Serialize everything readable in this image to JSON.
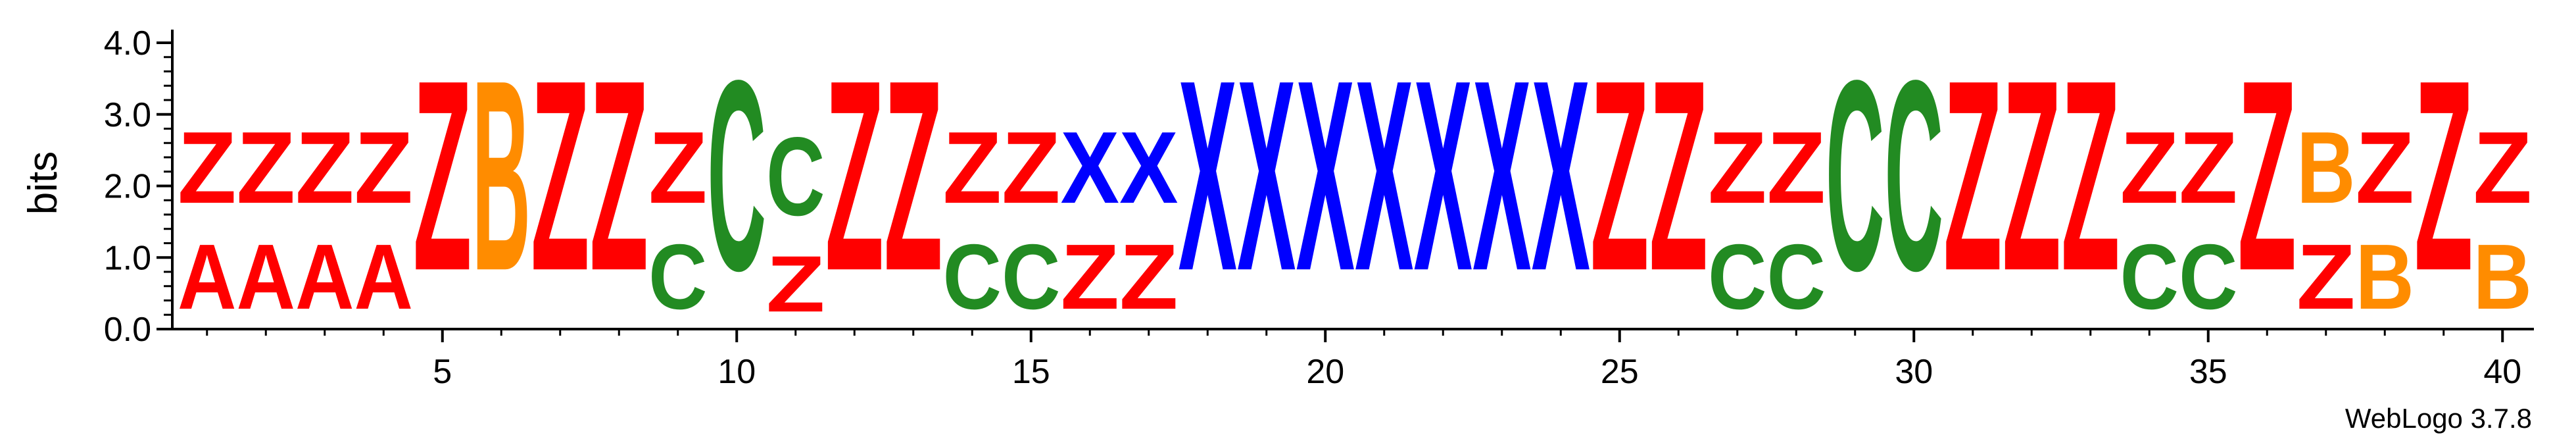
{
  "chart_data": {
    "type": "sequence-logo",
    "ylabel": "bits",
    "ylim": [
      0,
      4.0
    ],
    "y_ticks": [
      "0.0",
      "1.0",
      "2.0",
      "3.0",
      "4.0"
    ],
    "x_ticks": [
      "5",
      "10",
      "15",
      "20",
      "25",
      "30",
      "35",
      "40"
    ],
    "x_tick_positions": [
      5,
      10,
      15,
      20,
      25,
      30,
      35,
      40
    ],
    "credit": "WebLogo 3.7.8",
    "colors": {
      "Z": "#ff0000",
      "A": "#ff0000",
      "B": "#ff8c00",
      "C": "#228b22",
      "X": "#0000ff"
    },
    "positions": [
      {
        "pos": 1,
        "stack": [
          {
            "letter": "A",
            "bits": 1.45
          },
          {
            "letter": "Z",
            "bits": 1.6
          }
        ]
      },
      {
        "pos": 2,
        "stack": [
          {
            "letter": "A",
            "bits": 1.45
          },
          {
            "letter": "Z",
            "bits": 1.6
          }
        ]
      },
      {
        "pos": 3,
        "stack": [
          {
            "letter": "A",
            "bits": 1.45
          },
          {
            "letter": "Z",
            "bits": 1.6
          }
        ]
      },
      {
        "pos": 4,
        "stack": [
          {
            "letter": "A",
            "bits": 1.45
          },
          {
            "letter": "Z",
            "bits": 1.6
          }
        ]
      },
      {
        "pos": 5,
        "stack": [
          {
            "letter": "Z",
            "bits": 4.25
          }
        ]
      },
      {
        "pos": 6,
        "stack": [
          {
            "letter": "B",
            "bits": 4.25
          }
        ]
      },
      {
        "pos": 7,
        "stack": [
          {
            "letter": "Z",
            "bits": 4.25
          }
        ]
      },
      {
        "pos": 8,
        "stack": [
          {
            "letter": "Z",
            "bits": 4.25
          }
        ]
      },
      {
        "pos": 9,
        "stack": [
          {
            "letter": "C",
            "bits": 1.45
          },
          {
            "letter": "Z",
            "bits": 1.6
          }
        ]
      },
      {
        "pos": 10,
        "stack": [
          {
            "letter": "C",
            "bits": 4.25
          }
        ]
      },
      {
        "pos": 11,
        "stack": [
          {
            "letter": "Z",
            "bits": 1.25
          },
          {
            "letter": "C",
            "bits": 1.75
          }
        ]
      },
      {
        "pos": 12,
        "stack": [
          {
            "letter": "Z",
            "bits": 4.25
          }
        ]
      },
      {
        "pos": 13,
        "stack": [
          {
            "letter": "Z",
            "bits": 4.25
          }
        ]
      },
      {
        "pos": 14,
        "stack": [
          {
            "letter": "C",
            "bits": 1.45
          },
          {
            "letter": "Z",
            "bits": 1.6
          }
        ]
      },
      {
        "pos": 15,
        "stack": [
          {
            "letter": "C",
            "bits": 1.45
          },
          {
            "letter": "Z",
            "bits": 1.6
          }
        ]
      },
      {
        "pos": 16,
        "stack": [
          {
            "letter": "Z",
            "bits": 1.45
          },
          {
            "letter": "X",
            "bits": 1.6
          }
        ]
      },
      {
        "pos": 17,
        "stack": [
          {
            "letter": "Z",
            "bits": 1.45
          },
          {
            "letter": "X",
            "bits": 1.6
          }
        ]
      },
      {
        "pos": 18,
        "stack": [
          {
            "letter": "X",
            "bits": 4.25
          }
        ]
      },
      {
        "pos": 19,
        "stack": [
          {
            "letter": "X",
            "bits": 4.25
          }
        ]
      },
      {
        "pos": 20,
        "stack": [
          {
            "letter": "X",
            "bits": 4.25
          }
        ]
      },
      {
        "pos": 21,
        "stack": [
          {
            "letter": "X",
            "bits": 4.25
          }
        ]
      },
      {
        "pos": 22,
        "stack": [
          {
            "letter": "X",
            "bits": 4.25
          }
        ]
      },
      {
        "pos": 23,
        "stack": [
          {
            "letter": "X",
            "bits": 4.25
          }
        ]
      },
      {
        "pos": 24,
        "stack": [
          {
            "letter": "X",
            "bits": 4.25
          }
        ]
      },
      {
        "pos": 25,
        "stack": [
          {
            "letter": "Z",
            "bits": 4.25
          }
        ]
      },
      {
        "pos": 26,
        "stack": [
          {
            "letter": "Z",
            "bits": 4.25
          }
        ]
      },
      {
        "pos": 27,
        "stack": [
          {
            "letter": "C",
            "bits": 1.45
          },
          {
            "letter": "Z",
            "bits": 1.6
          }
        ]
      },
      {
        "pos": 28,
        "stack": [
          {
            "letter": "C",
            "bits": 1.45
          },
          {
            "letter": "Z",
            "bits": 1.6
          }
        ]
      },
      {
        "pos": 29,
        "stack": [
          {
            "letter": "C",
            "bits": 4.25
          }
        ]
      },
      {
        "pos": 30,
        "stack": [
          {
            "letter": "C",
            "bits": 4.25
          }
        ]
      },
      {
        "pos": 31,
        "stack": [
          {
            "letter": "Z",
            "bits": 4.25
          }
        ]
      },
      {
        "pos": 32,
        "stack": [
          {
            "letter": "Z",
            "bits": 4.25
          }
        ]
      },
      {
        "pos": 33,
        "stack": [
          {
            "letter": "Z",
            "bits": 4.25
          }
        ]
      },
      {
        "pos": 34,
        "stack": [
          {
            "letter": "C",
            "bits": 1.45
          },
          {
            "letter": "Z",
            "bits": 1.6
          }
        ]
      },
      {
        "pos": 35,
        "stack": [
          {
            "letter": "C",
            "bits": 1.45
          },
          {
            "letter": "Z",
            "bits": 1.6
          }
        ]
      },
      {
        "pos": 36,
        "stack": [
          {
            "letter": "Z",
            "bits": 4.25
          }
        ]
      },
      {
        "pos": 37,
        "stack": [
          {
            "letter": "Z",
            "bits": 1.45
          },
          {
            "letter": "B",
            "bits": 1.6
          }
        ]
      },
      {
        "pos": 38,
        "stack": [
          {
            "letter": "B",
            "bits": 1.45
          },
          {
            "letter": "Z",
            "bits": 1.6
          }
        ]
      },
      {
        "pos": 39,
        "stack": [
          {
            "letter": "Z",
            "bits": 4.25
          }
        ]
      },
      {
        "pos": 40,
        "stack": [
          {
            "letter": "B",
            "bits": 1.45
          },
          {
            "letter": "Z",
            "bits": 1.6
          }
        ]
      }
    ]
  }
}
